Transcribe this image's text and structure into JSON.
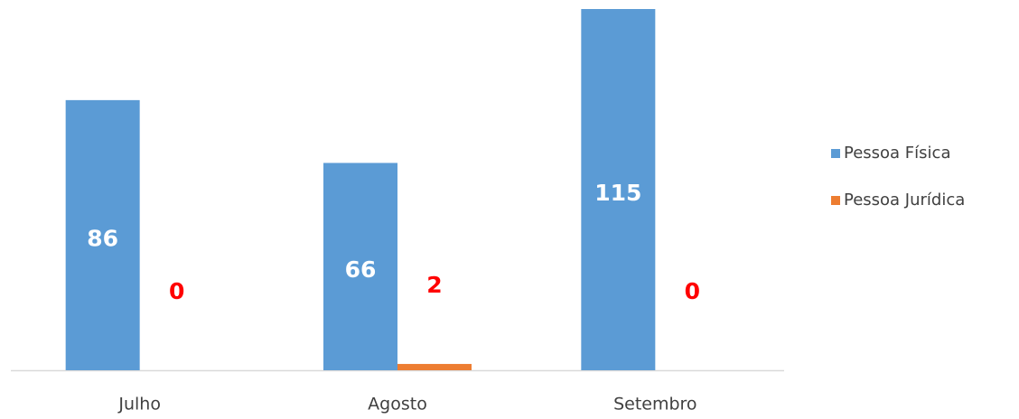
{
  "chart_data": {
    "type": "bar",
    "categories": [
      "Julho",
      "Agosto",
      "Setembro"
    ],
    "series": [
      {
        "name": "Pessoa Física",
        "color": "#5b9bd5",
        "label_color": "#ffffff",
        "values": [
          86,
          66,
          115
        ]
      },
      {
        "name": "Pessoa Jurídica",
        "color": "#ed7d31",
        "label_color": "#ff0000",
        "values": [
          0,
          2,
          0
        ]
      }
    ],
    "legend": "right"
  }
}
